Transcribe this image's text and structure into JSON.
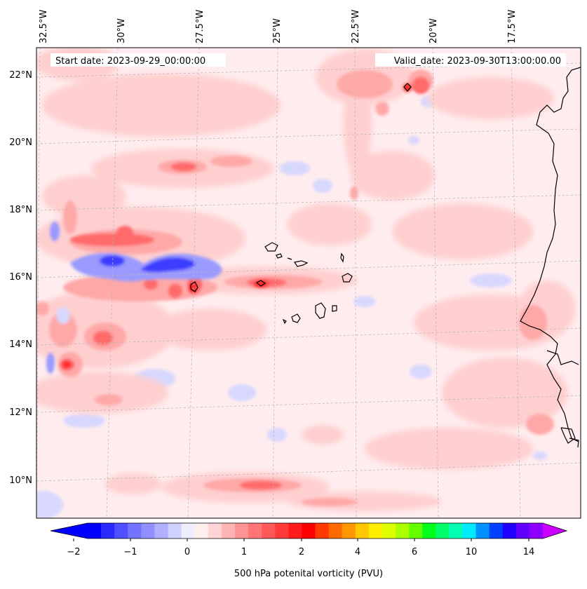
{
  "header": {
    "start_date": "Start date: 2023-09-29_00:00:00",
    "valid_date": "Valid_date: 2023-09-30T13:00:00.00"
  },
  "axes": {
    "lon_labels": [
      "32.5°W",
      "30°W",
      "27.5°W",
      "25°W",
      "22.5°W",
      "20°W",
      "17.5°W"
    ],
    "lat_labels": [
      "22°N",
      "20°N",
      "18°N",
      "16°N",
      "14°N",
      "12°N",
      "10°N"
    ]
  },
  "colorbar": {
    "label": "500 hPa potenital vorticity (PVU)",
    "tick_labels": [
      "−2",
      "−1",
      "0",
      "1",
      "2",
      "4",
      "6",
      "10",
      "14"
    ],
    "colors": [
      "#0000ff",
      "#2a2aff",
      "#4f4fff",
      "#7373ff",
      "#9090ff",
      "#b0b0ff",
      "#d0d0ff",
      "#eeeeff",
      "#ffeeee",
      "#ffd4d4",
      "#ffb4b4",
      "#ff9494",
      "#ff7474",
      "#ff5858",
      "#ff3a3a",
      "#ff1c1c",
      "#ff0000",
      "#ff3a00",
      "#ff6a00",
      "#ff9800",
      "#ffc800",
      "#ffee00",
      "#ddff00",
      "#aaff00",
      "#66ff00",
      "#00ff1a",
      "#00ff6a",
      "#00ffb4",
      "#00eaff",
      "#0090ff",
      "#0040ff",
      "#2000ff",
      "#6000ff",
      "#9000ff"
    ],
    "under_color": "#0000ff",
    "over_color": "#cc00ff"
  },
  "map_colors": {
    "background": "#ffecee",
    "light_red": "#ffcfcf",
    "mid_red": "#ffa8a8",
    "strong_red": "#ff6a6a",
    "peak_red": "#ff2a2a",
    "light_blue": "#d8d8ff",
    "mid_blue": "#9a9aff",
    "strong_blue": "#3c3cff",
    "coast": "#000000"
  }
}
